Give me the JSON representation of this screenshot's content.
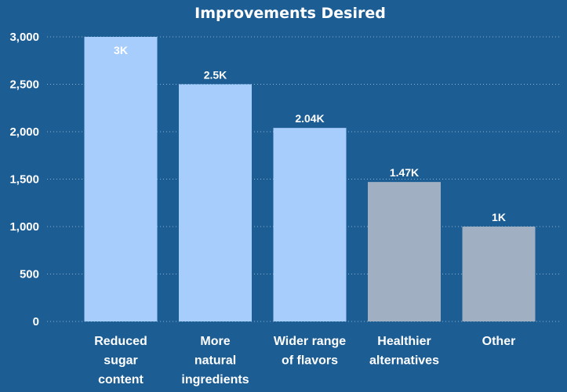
{
  "chart_data": {
    "type": "bar",
    "title": "Improvements Desired",
    "categories": [
      [
        "Reduced",
        "sugar",
        "content"
      ],
      [
        "More",
        "natural",
        "ingredients"
      ],
      [
        "Wider range",
        "of flavors"
      ],
      [
        "Healthier",
        "alternatives"
      ],
      [
        "Other"
      ]
    ],
    "values": [
      3000,
      2500,
      2040,
      1470,
      1000
    ],
    "data_labels": [
      "3K",
      "2.5K",
      "2.04K",
      "1.47K",
      "1K"
    ],
    "bar_colors": [
      "#a6cdfc",
      "#a6cdfc",
      "#a6cdfc",
      "#a0b0c2",
      "#a0b0c2"
    ],
    "ylim": [
      0,
      3000
    ],
    "yticks": [
      0,
      500,
      1000,
      1500,
      2000,
      2500,
      3000
    ],
    "ytick_labels": [
      "0",
      "500",
      "1,000",
      "1,500",
      "2,000",
      "2,500",
      "3,000"
    ],
    "grid": true,
    "xlabel": "",
    "ylabel": ""
  },
  "colors": {
    "background": "#1c5d94",
    "text": "#ffffff",
    "grid": "#a9c4de"
  }
}
